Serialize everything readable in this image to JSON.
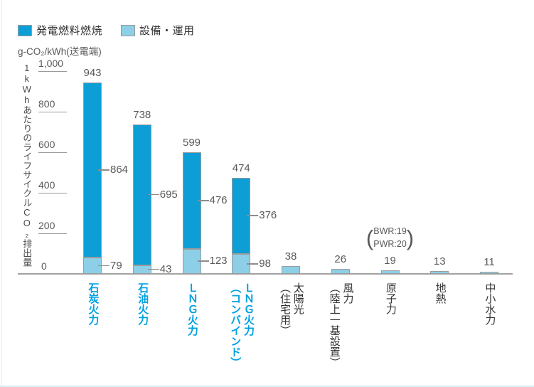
{
  "legend": {
    "items": [
      {
        "label": "発電燃料燃焼",
        "color": "#0d9ed6"
      },
      {
        "label": "設備・運用",
        "color": "#8ccfe7"
      }
    ]
  },
  "chart_data": {
    "type": "bar",
    "stacked": true,
    "unit_label": "g-CO₂/kWh(送電端)",
    "y_axis_title": "1kWhあたりのライフサイクルCO₂排出量",
    "ylim": [
      0,
      1000
    ],
    "grid": false,
    "legend_position": "top-left",
    "yticks": [
      0,
      200,
      400,
      600,
      800,
      1000
    ],
    "ytick_labels": [
      "0",
      "200",
      "400",
      "600",
      "800",
      "1,000"
    ],
    "categories": [
      {
        "lines": [
          "石炭火力"
        ],
        "highlighted": true
      },
      {
        "lines": [
          "石油火力"
        ],
        "highlighted": true
      },
      {
        "lines": [
          "ＬＮＧ火力"
        ],
        "highlighted": true
      },
      {
        "lines": [
          "ＬＮＧ火力",
          "（コンバインド）"
        ],
        "highlighted": true
      },
      {
        "lines": [
          "太陽光",
          "（住宅用）"
        ],
        "highlighted": false
      },
      {
        "lines": [
          "風力",
          "（陸上一基設置）"
        ],
        "highlighted": false
      },
      {
        "lines": [
          "原子力"
        ],
        "highlighted": false
      },
      {
        "lines": [
          "地熱"
        ],
        "highlighted": false
      },
      {
        "lines": [
          "中小水力"
        ],
        "highlighted": false
      }
    ],
    "series": [
      {
        "name": "発電燃料燃焼",
        "color": "#0d9ed6",
        "values": [
          864,
          695,
          476,
          376,
          0,
          0,
          0,
          0,
          0
        ]
      },
      {
        "name": "設備・運用",
        "color": "#8ccfe7",
        "values": [
          79,
          43,
          123,
          98,
          38,
          26,
          19,
          13,
          11
        ]
      }
    ],
    "totals": [
      943,
      738,
      599,
      474,
      38,
      26,
      19,
      13,
      11
    ],
    "annotations": [
      {
        "category": "原子力",
        "category_index": 6,
        "lines": [
          "BWR:19",
          "PWR:20"
        ]
      }
    ]
  }
}
